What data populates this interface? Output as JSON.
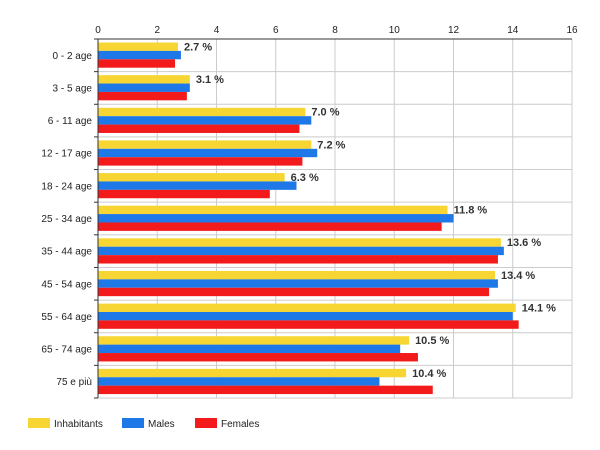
{
  "chart_data": {
    "type": "bar",
    "orientation": "horizontal",
    "categories": [
      "0 - 2 age",
      "3 - 5 age",
      "6 - 11 age",
      "12 - 17 age",
      "18 - 24 age",
      "25 - 34 age",
      "35 - 44 age",
      "45 - 54 age",
      "55 - 64 age",
      "65 - 74 age",
      "75 e più"
    ],
    "series": [
      {
        "name": "Inhabitants",
        "color": "#f7d633",
        "values": [
          2.7,
          3.1,
          7.0,
          7.2,
          6.3,
          11.8,
          13.6,
          13.4,
          14.1,
          10.5,
          10.4
        ]
      },
      {
        "name": "Males",
        "color": "#1f78e8",
        "values": [
          2.8,
          3.1,
          7.2,
          7.4,
          6.7,
          12.0,
          13.7,
          13.5,
          14.0,
          10.2,
          9.5
        ]
      },
      {
        "name": "Females",
        "color": "#f21a1a",
        "values": [
          2.6,
          3.0,
          6.8,
          6.9,
          5.8,
          11.6,
          13.5,
          13.2,
          14.2,
          10.8,
          11.3
        ]
      }
    ],
    "data_labels": [
      "2.7 %",
      "3.1 %",
      "7.0 %",
      "7.2 %",
      "6.3 %",
      "11.8 %",
      "13.6 %",
      "13.4 %",
      "14.1 %",
      "10.5 %",
      "10.4 %"
    ],
    "xlim": [
      0,
      16
    ],
    "xticks": [
      0,
      2,
      4,
      6,
      8,
      10,
      12,
      14,
      16
    ],
    "x_axis_position": "top",
    "grid": true,
    "legend_position": "bottom-left"
  }
}
